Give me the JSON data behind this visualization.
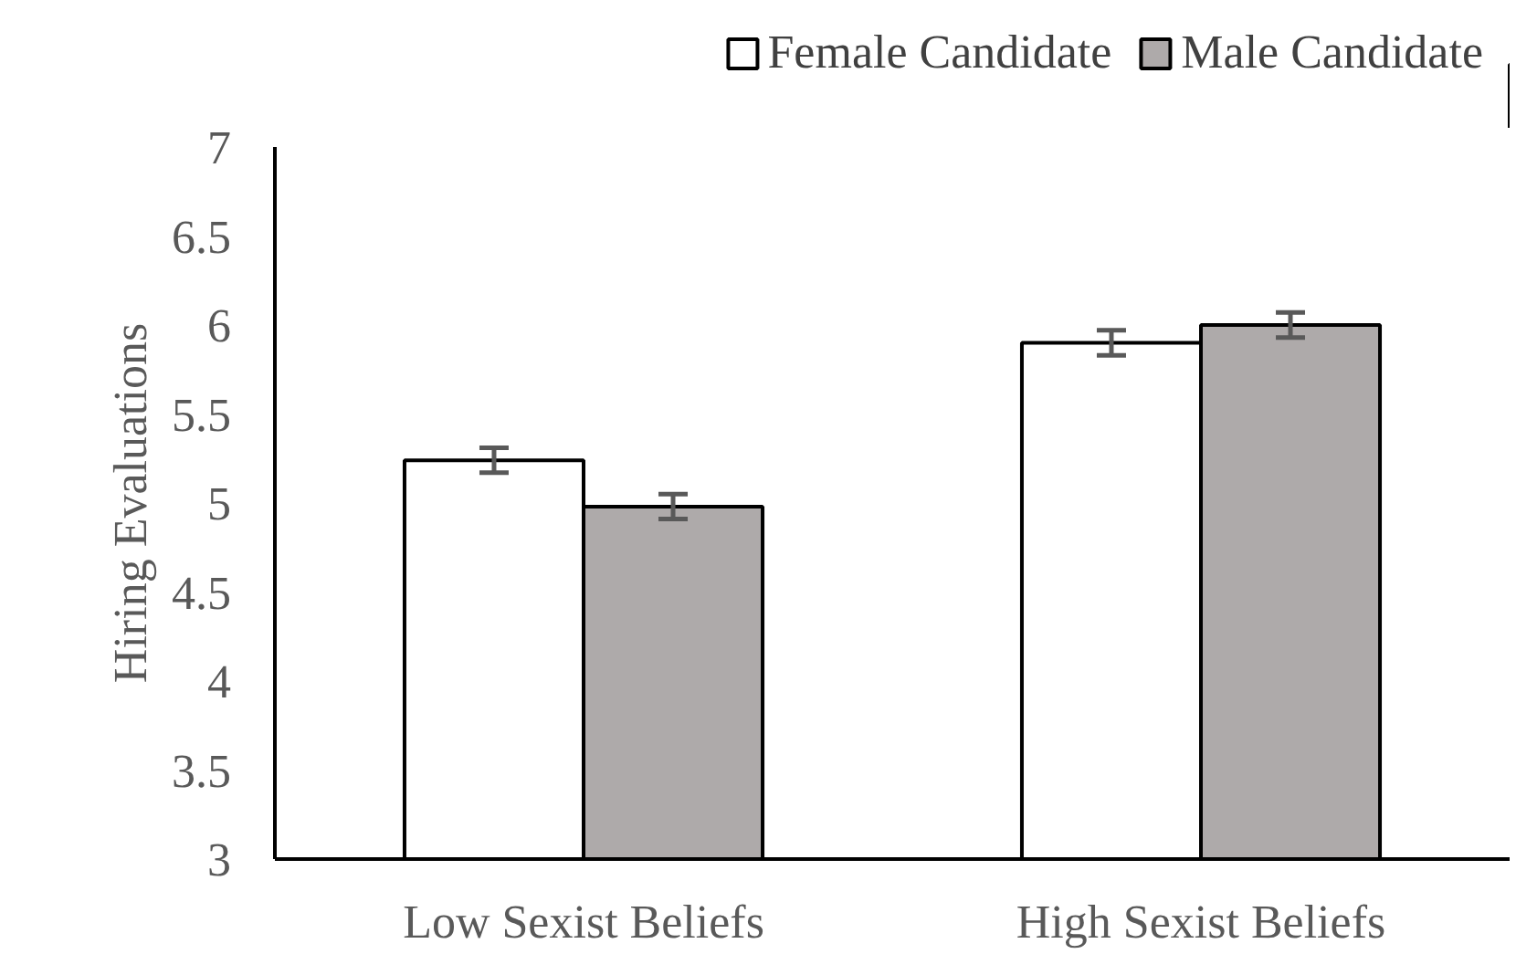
{
  "chart_data": {
    "type": "bar",
    "ylabel": "Hiring Evaluations",
    "categories": [
      "Low Sexist Beliefs",
      "High Sexist Beliefs"
    ],
    "series": [
      {
        "name": "Female Candidate",
        "color": "#ffffff",
        "values": [
          5.24,
          5.9
        ],
        "errors": [
          0.07,
          0.07
        ]
      },
      {
        "name": "Male Candidate",
        "color": "#aeaaaa",
        "values": [
          4.98,
          6.0
        ],
        "errors": [
          0.07,
          0.07
        ]
      }
    ],
    "ylim": [
      3,
      7
    ],
    "yticks": [
      3,
      3.5,
      4,
      4.5,
      5,
      5.5,
      6,
      6.5,
      7
    ],
    "grid": false,
    "legend": "top right"
  }
}
